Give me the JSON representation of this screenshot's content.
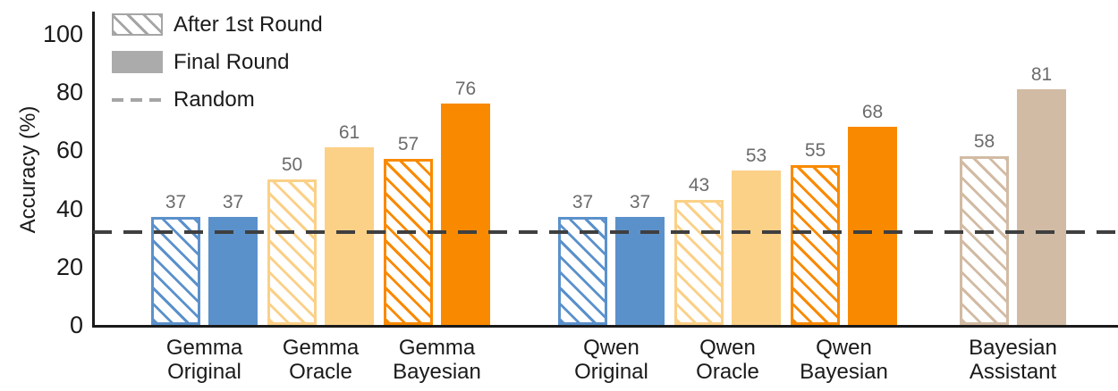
{
  "chart_data": {
    "type": "bar",
    "title": "",
    "xlabel": "",
    "ylabel": "Accuracy (%)",
    "ylim": [
      0,
      105
    ],
    "yticks": [
      0,
      20,
      40,
      60,
      80,
      100
    ],
    "grid": false,
    "legend_position": "upper left",
    "legend": [
      {
        "label": "After 1st Round",
        "style": "hatched"
      },
      {
        "label": "Final Round",
        "style": "solid"
      },
      {
        "label": "Random",
        "style": "dashed"
      }
    ],
    "random_baseline": 32,
    "series_names": [
      "After 1st Round",
      "Final Round"
    ],
    "categories": [
      "Gemma Original",
      "Gemma Oracle",
      "Gemma Bayesian",
      "Qwen Original",
      "Qwen Oracle",
      "Qwen Bayesian",
      "Bayesian Assistant"
    ],
    "groups": [
      {
        "label_lines": [
          "Gemma",
          "Original"
        ],
        "cluster": 0,
        "color": "#5B91CB",
        "after_1st_round": 37,
        "final_round": 37
      },
      {
        "label_lines": [
          "Gemma",
          "Oracle"
        ],
        "cluster": 0,
        "color": "#FBD087",
        "after_1st_round": 50,
        "final_round": 61
      },
      {
        "label_lines": [
          "Gemma",
          "Bayesian"
        ],
        "cluster": 0,
        "color": "#F98A00",
        "after_1st_round": 57,
        "final_round": 76
      },
      {
        "label_lines": [
          "Qwen",
          "Original"
        ],
        "cluster": 1,
        "color": "#5B91CB",
        "after_1st_round": 37,
        "final_round": 37
      },
      {
        "label_lines": [
          "Qwen",
          "Oracle"
        ],
        "cluster": 1,
        "color": "#FBD087",
        "after_1st_round": 43,
        "final_round": 53
      },
      {
        "label_lines": [
          "Qwen",
          "Bayesian"
        ],
        "cluster": 1,
        "color": "#F98A00",
        "after_1st_round": 55,
        "final_round": 68
      },
      {
        "label_lines": [
          "Bayesian",
          "Assistant"
        ],
        "cluster": 2,
        "color": "#D2BBA4",
        "after_1st_round": 58,
        "final_round": 81
      }
    ],
    "colors": {
      "value_label": "#6B6B6B",
      "random_line": "#3F3F3F",
      "legend_solid_gray": "#ABABAB",
      "legend_hatch_gray": "#A5A5A5",
      "axis": "#1A1A1A"
    }
  }
}
